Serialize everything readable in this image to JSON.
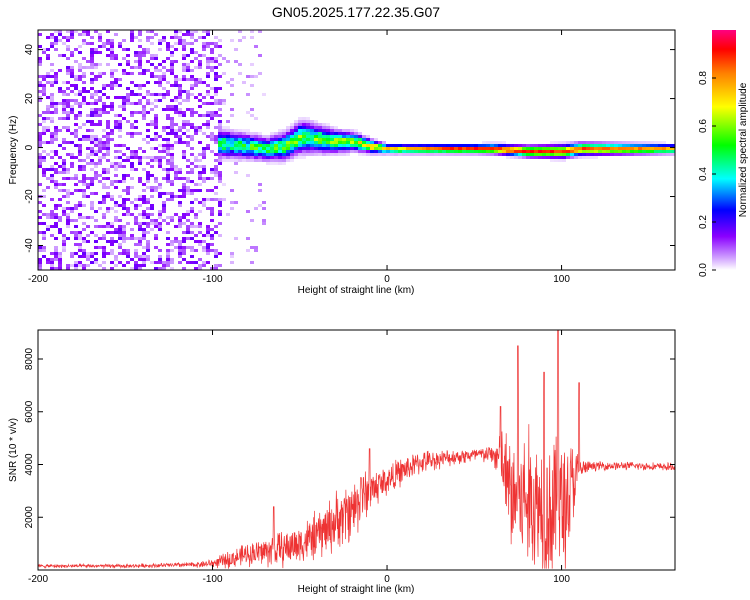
{
  "title": "GN05.2025.177.22.35.G07",
  "chart_data": [
    {
      "type": "heatmap",
      "title": "GN05.2025.177.22.35.G07",
      "xlabel": "Height of straight line (km)",
      "ylabel": "Frequency (Hz)",
      "xlim": [
        -200,
        165
      ],
      "ylim": [
        -50,
        48
      ],
      "xticks": [
        -200,
        -100,
        0,
        100
      ],
      "yticks": [
        -40,
        -20,
        0,
        20,
        40
      ],
      "colorbar": {
        "label": "Normalized spectral amplitude",
        "range": [
          0,
          1
        ],
        "ticks": [
          "0.0",
          "0.2",
          "0.4",
          "0.6",
          "0.8"
        ],
        "colormap": [
          "#ffffff",
          "#8a00ff",
          "#0000ff",
          "#00ffff",
          "#00ff00",
          "#ffff00",
          "#ff8000",
          "#ff0000",
          "#ff0080"
        ]
      },
      "features": {
        "noise_region_x": [
          -200,
          -95
        ],
        "track_center_hz": [
          [
            -95,
            2
          ],
          [
            -80,
            1
          ],
          [
            -70,
            0
          ],
          [
            -60,
            1
          ],
          [
            -50,
            5
          ],
          [
            -40,
            4
          ],
          [
            -30,
            3
          ],
          [
            -20,
            3
          ],
          [
            -10,
            1
          ],
          [
            0,
            0
          ],
          [
            20,
            0
          ],
          [
            40,
            0
          ],
          [
            60,
            0
          ],
          [
            80,
            -1
          ],
          [
            100,
            -1
          ],
          [
            110,
            0
          ],
          [
            165,
            0
          ]
        ],
        "track_halfwidth_hz": [
          [
            -95,
            6
          ],
          [
            -70,
            5
          ],
          [
            -50,
            7
          ],
          [
            -40,
            6
          ],
          [
            -20,
            4
          ],
          [
            0,
            2
          ],
          [
            50,
            2
          ],
          [
            100,
            3
          ],
          [
            165,
            2
          ]
        ],
        "track_peak_amplitude": [
          [
            -95,
            0.45
          ],
          [
            -60,
            0.5
          ],
          [
            -30,
            0.55
          ],
          [
            0,
            0.75
          ],
          [
            50,
            0.9
          ],
          [
            100,
            0.85
          ],
          [
            165,
            0.75
          ]
        ]
      }
    },
    {
      "type": "line",
      "xlabel": "Height of straight line (km)",
      "ylabel": "SNR (10 * v/v)",
      "xlim": [
        -200,
        165
      ],
      "ylim": [
        0,
        9100
      ],
      "xticks": [
        -200,
        -100,
        0,
        100
      ],
      "yticks": [
        2000,
        4000,
        6000,
        8000
      ],
      "color": "#ee3333",
      "envelope": {
        "x": [
          -200,
          -150,
          -110,
          -100,
          -90,
          -80,
          -70,
          -60,
          -50,
          -40,
          -30,
          -20,
          -15,
          -10,
          0,
          10,
          20,
          30,
          40,
          50,
          60,
          65,
          70,
          75,
          80,
          85,
          90,
          95,
          100,
          105,
          110,
          115,
          120,
          140,
          165
        ],
        "base": [
          150,
          150,
          200,
          250,
          400,
          600,
          700,
          800,
          1000,
          1300,
          1800,
          2300,
          2700,
          3000,
          3400,
          3800,
          4100,
          4200,
          4300,
          4350,
          4400,
          4200,
          3000,
          2500,
          2700,
          2500,
          2600,
          2200,
          2300,
          3000,
          3800,
          3900,
          3950,
          3950,
          3900
        ],
        "spread": [
          80,
          80,
          120,
          200,
          400,
          500,
          700,
          800,
          900,
          1100,
          1300,
          1400,
          1300,
          1000,
          700,
          600,
          500,
          400,
          350,
          350,
          400,
          1500,
          2600,
          3000,
          3300,
          3200,
          3300,
          3500,
          3600,
          2600,
          600,
          250,
          200,
          180,
          180
        ]
      },
      "peaks": [
        [
          -65,
          2400
        ],
        [
          -15,
          3500
        ],
        [
          -10,
          4600
        ],
        [
          65,
          6200
        ],
        [
          75,
          8500
        ],
        [
          90,
          7500
        ],
        [
          98,
          9100
        ],
        [
          110,
          7100
        ]
      ]
    }
  ]
}
